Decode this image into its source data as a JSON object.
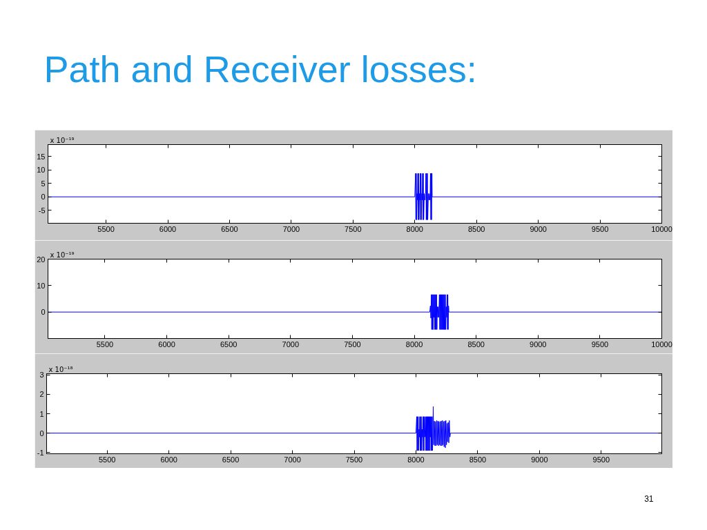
{
  "chart_data": [
    {
      "type": "line",
      "title": "Path and Receiver losses:",
      "annotations": [
        "x 10⁻¹⁹"
      ],
      "grid": false,
      "xlim": [
        5030,
        10000
      ],
      "ylim": [
        -9.8,
        19.4
      ],
      "xticks": [
        5500,
        6000,
        6500,
        7000,
        7500,
        8000,
        8500,
        9000,
        9500,
        10000
      ],
      "yticks": [
        -5,
        0,
        5,
        10,
        15
      ],
      "x": [
        5030,
        8000,
        8006,
        8009,
        8012,
        8015,
        8019,
        8022,
        8025,
        8028,
        8031,
        8034,
        8038,
        8041,
        8044,
        8047,
        8050,
        8053,
        8057,
        8060,
        8063,
        8066,
        8069,
        8072,
        8077,
        8082,
        8087,
        8090,
        8093,
        8096,
        8099,
        8102,
        8105,
        8110,
        8115,
        8120,
        8124,
        8127,
        8130,
        8133,
        8136,
        8139,
        8141,
        10000
      ],
      "series": [
        {
          "color": "#0000ff",
          "values": [
            0,
            0,
            8.7,
            -8.5,
            8.7,
            -8.5,
            1.2,
            -1.2,
            8.7,
            -8.5,
            8.7,
            -8.5,
            1.2,
            -1.2,
            8.7,
            -8.5,
            8.7,
            -8.5,
            1.2,
            -1.2,
            8.7,
            -8.5,
            8.7,
            -8.5,
            1.2,
            -1.2,
            1.2,
            8.7,
            -8.5,
            8.7,
            -8.5,
            8.7,
            -8.5,
            1.2,
            -1.2,
            1.2,
            -1.2,
            8.7,
            -8.5,
            8.7,
            -8.5,
            8.7,
            0,
            0
          ]
        }
      ]
    },
    {
      "type": "line",
      "annotations": [
        "x 10⁻¹⁹"
      ],
      "grid": false,
      "xlim": [
        5040,
        10000
      ],
      "ylim": [
        -10,
        20
      ],
      "xticks": [
        5500,
        6000,
        6500,
        7000,
        7500,
        8000,
        8500,
        9000,
        9500,
        10000
      ],
      "yticks": [
        0,
        10,
        20
      ],
      "x": [
        5040,
        8125,
        8130,
        8134,
        8138,
        8141,
        8144,
        8147,
        8150,
        8153,
        8156,
        8159,
        8162,
        8165,
        8168,
        8171,
        8174,
        8177,
        8180,
        8183,
        8186,
        8190,
        8194,
        8198,
        8203,
        8206,
        8209,
        8212,
        8215,
        8218,
        8221,
        8224,
        8227,
        8230,
        8233,
        8236,
        8239,
        8242,
        8245,
        8248,
        8251,
        8254,
        8258,
        8262,
        8265,
        8268,
        8271,
        8274,
        8277,
        8280,
        10000
      ],
      "series": [
        {
          "color": "#0000ff",
          "values": [
            0,
            0,
            2.3,
            -2.3,
            6.6,
            -6.6,
            6.6,
            -6.6,
            6.6,
            -6.6,
            6.6,
            -2,
            6.6,
            -6.6,
            6.6,
            -6.6,
            6.6,
            -6.6,
            6.6,
            -6.6,
            2,
            -2,
            2,
            -2,
            6.6,
            -6.6,
            6.6,
            -6.6,
            6.6,
            -6.6,
            6.6,
            -6.6,
            6.6,
            -6.6,
            6.6,
            -6.6,
            6.6,
            -6.6,
            6.6,
            -6.6,
            6.6,
            -6.6,
            2,
            -2,
            6.6,
            -6.6,
            6.6,
            -6.6,
            2.3,
            0,
            0
          ]
        }
      ]
    },
    {
      "type": "line",
      "annotations": [
        "x 10⁻¹⁸",
        "31"
      ],
      "grid": false,
      "xlim": [
        5010,
        9990
      ],
      "ylim": [
        -1.06,
        3.06
      ],
      "xticks": [
        5500,
        6000,
        6500,
        7000,
        7500,
        8000,
        8500,
        9000,
        9500
      ],
      "yticks": [
        -1,
        0,
        1,
        2,
        3
      ],
      "x": [
        5010,
        8000,
        8006,
        8009,
        8012,
        8015,
        8018,
        8021,
        8025,
        8028,
        8031,
        8034,
        8037,
        8040,
        8043,
        8046,
        8050,
        8053,
        8056,
        8059,
        8062,
        8065,
        8068,
        8071,
        8074,
        8077,
        8080,
        8083,
        8086,
        8089,
        8092,
        8095,
        8098,
        8101,
        8104,
        8107,
        8110,
        8113,
        8116,
        8119,
        8122,
        8125,
        8128,
        8131,
        8134,
        8137,
        8140,
        8144,
        8149,
        8154,
        8158,
        8163,
        8168,
        8172,
        8177,
        8182,
        8186,
        8191,
        8196,
        8200,
        8205,
        8210,
        8214,
        8219,
        8224,
        8228,
        8233,
        8238,
        8242,
        8247,
        8252,
        8256,
        8261,
        8266,
        8270,
        8275,
        8279,
        9990
      ],
      "series": [
        {
          "color": "#0000ff",
          "values": [
            0,
            0,
            0.85,
            -0.9,
            0.85,
            -0.9,
            0.85,
            -0.9,
            0.2,
            -0.2,
            0.85,
            -0.9,
            0.85,
            -0.9,
            0.85,
            -0.9,
            0.2,
            -0.2,
            0.85,
            -0.9,
            0.85,
            -0.9,
            0.85,
            -0.2,
            0.2,
            0.85,
            -0.9,
            0.85,
            -0.9,
            0.85,
            -0.9,
            0.85,
            -0.9,
            0.85,
            -0.9,
            0.85,
            -0.9,
            0.85,
            -0.2,
            0.85,
            -0.9,
            0.85,
            -0.9,
            0.85,
            -0.9,
            -0.2,
            1.37,
            -0.6,
            0.62,
            -0.65,
            0.6,
            -0.65,
            0.65,
            -0.6,
            0.62,
            -0.65,
            0.6,
            -0.6,
            0.6,
            -0.65,
            0.62,
            -0.65,
            0.65,
            -0.6,
            0.6,
            -0.7,
            0.62,
            -0.75,
            0.65,
            -0.6,
            0.5,
            -0.45,
            0.55,
            -0.5,
            0.65,
            -0.2,
            0,
            0
          ]
        }
      ]
    }
  ]
}
